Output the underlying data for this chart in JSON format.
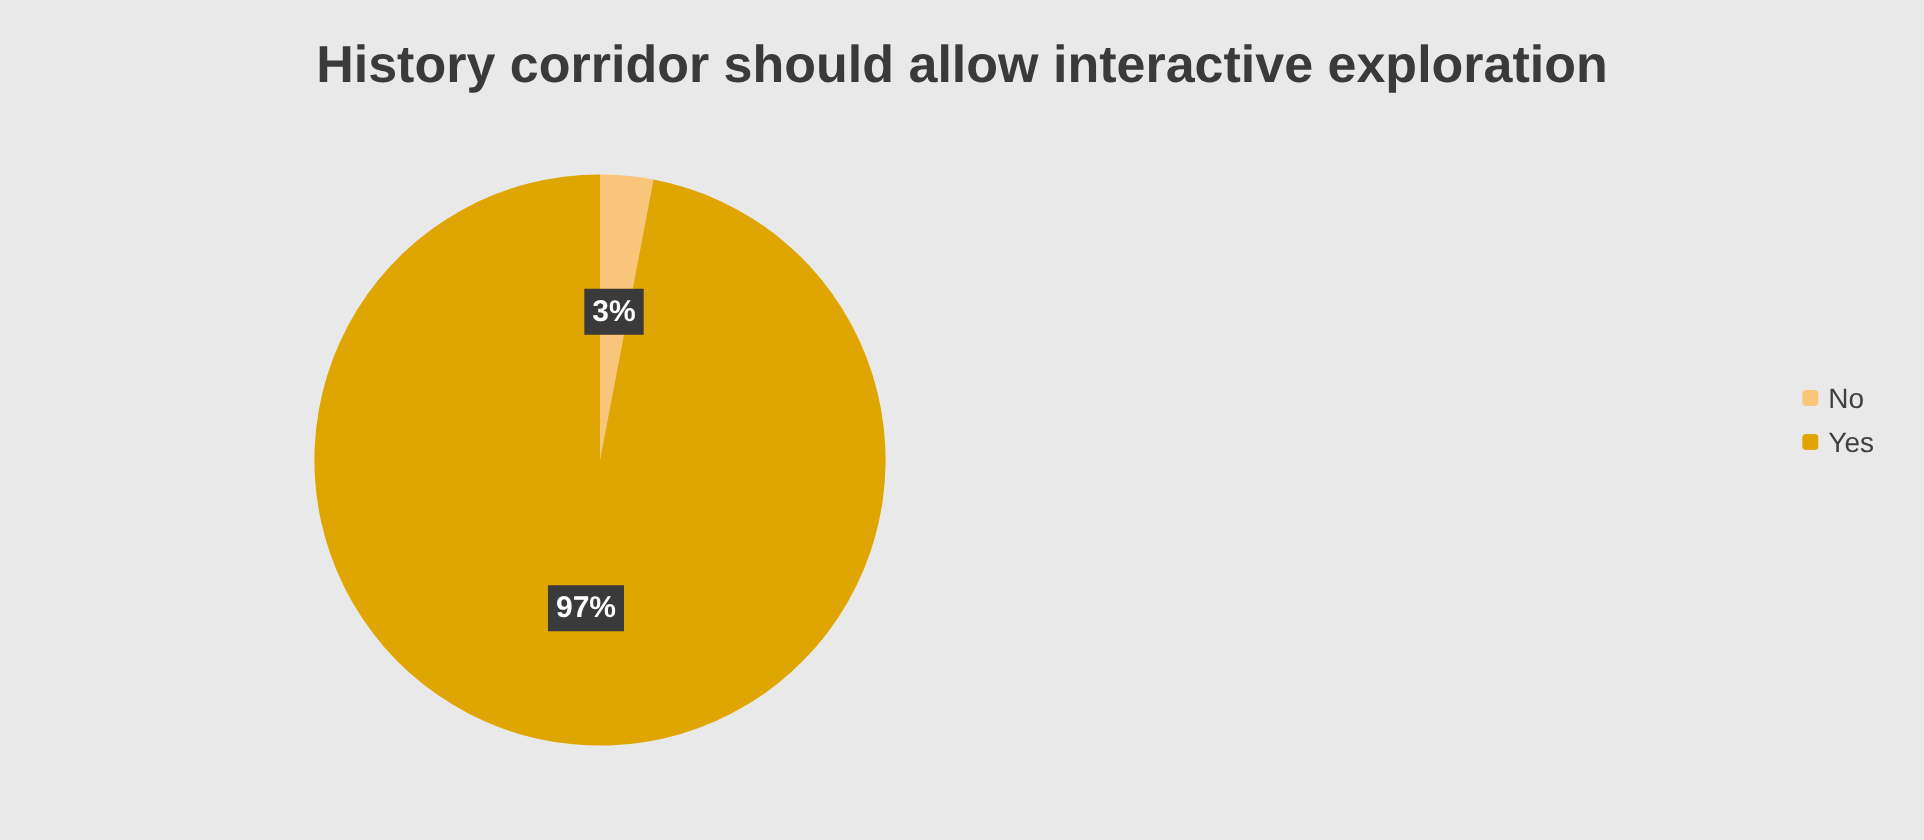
{
  "chart_data": {
    "type": "pie",
    "title": "History corridor should allow interactive exploration",
    "categories": [
      "No",
      "Yes"
    ],
    "values": [
      3,
      97
    ],
    "colors": [
      "#f8c57a",
      "#dfa500"
    ],
    "value_labels": [
      "3%",
      "97%"
    ],
    "legend": "right"
  }
}
